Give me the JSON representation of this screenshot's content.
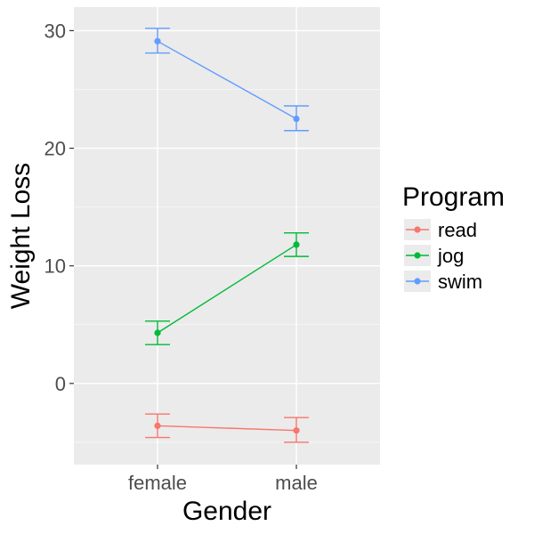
{
  "chart_data": {
    "type": "line",
    "xlabel": "Gender",
    "ylabel": "Weight Loss",
    "categories": [
      "female",
      "male"
    ],
    "ylim": [
      -6.9,
      32.0
    ],
    "yticks": [
      0,
      10,
      20,
      30
    ],
    "grid": true,
    "legend": {
      "title": "Program",
      "position": "right"
    },
    "series": [
      {
        "name": "read",
        "color": "#F8766D",
        "values": [
          -3.6,
          -4.0
        ],
        "lower": [
          -4.6,
          -5.0
        ],
        "upper": [
          -2.6,
          -2.9
        ]
      },
      {
        "name": "jog",
        "color": "#00BA38",
        "values": [
          4.3,
          11.8
        ],
        "lower": [
          3.3,
          10.8
        ],
        "upper": [
          5.3,
          12.8
        ]
      },
      {
        "name": "swim",
        "color": "#619CFF",
        "values": [
          29.1,
          22.5
        ],
        "lower": [
          28.1,
          21.5
        ],
        "upper": [
          30.2,
          23.6
        ]
      }
    ]
  }
}
